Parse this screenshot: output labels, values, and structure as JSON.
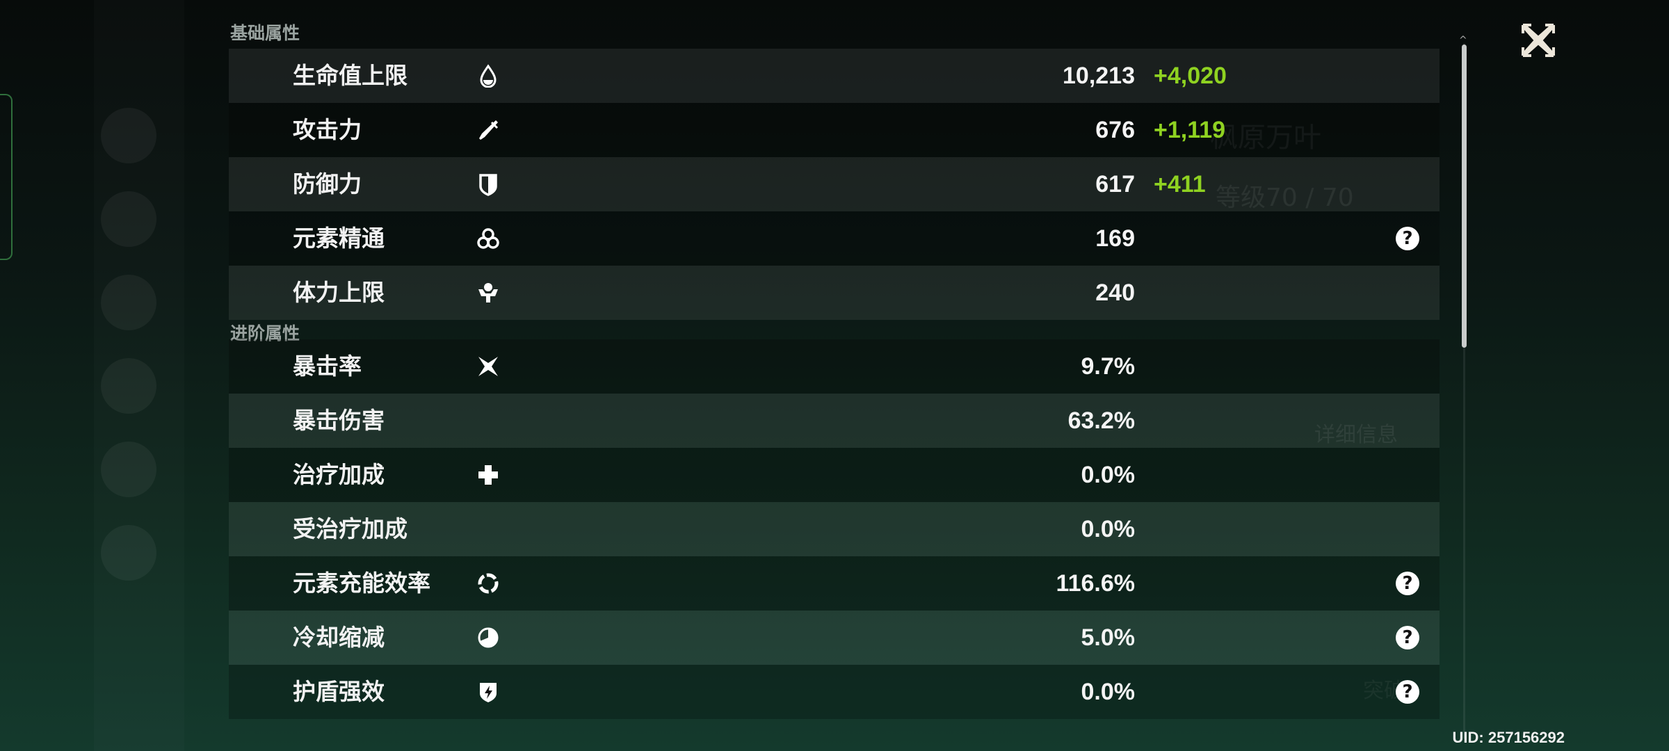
{
  "background": {
    "character_name": "枫原万叶",
    "level": "等级70 / 70",
    "details_button": "详细信息",
    "ascend_button": "突破"
  },
  "sections": [
    {
      "title": "基础属性",
      "rows": [
        {
          "icon": "hp-drop-icon",
          "label": "生命值上限",
          "value": "10,213",
          "bonus": "+4,020",
          "help": false
        },
        {
          "icon": "attack-sword-icon",
          "label": "攻击力",
          "value": "676",
          "bonus": "+1,119",
          "help": false
        },
        {
          "icon": "defense-shield-icon",
          "label": "防御力",
          "value": "617",
          "bonus": "+411",
          "help": false
        },
        {
          "icon": "elemental-mastery-icon",
          "label": "元素精通",
          "value": "169",
          "bonus": "",
          "help": true
        },
        {
          "icon": "stamina-icon",
          "label": "体力上限",
          "value": "240",
          "bonus": "",
          "help": false
        }
      ]
    },
    {
      "title": "进阶属性",
      "rows": [
        {
          "icon": "crit-rate-icon",
          "label": "暴击率",
          "value": "9.7%",
          "bonus": "",
          "help": false
        },
        {
          "icon": "",
          "label": "暴击伤害",
          "value": "63.2%",
          "bonus": "",
          "help": false
        },
        {
          "icon": "healing-cross-icon",
          "label": "治疗加成",
          "value": "0.0%",
          "bonus": "",
          "help": false
        },
        {
          "icon": "",
          "label": "受治疗加成",
          "value": "0.0%",
          "bonus": "",
          "help": false
        },
        {
          "icon": "energy-recharge-icon",
          "label": "元素充能效率",
          "value": "116.6%",
          "bonus": "",
          "help": true
        },
        {
          "icon": "cooldown-icon",
          "label": "冷却缩减",
          "value": "5.0%",
          "bonus": "",
          "help": true
        },
        {
          "icon": "shield-strength-icon",
          "label": "护盾强效",
          "value": "0.0%",
          "bonus": "",
          "help": true
        }
      ]
    }
  ],
  "help_glyph": "?",
  "uid": "UID: 257156292",
  "colors": {
    "bonus": "#8fd221",
    "accent_edge": "#2f6f3c"
  }
}
